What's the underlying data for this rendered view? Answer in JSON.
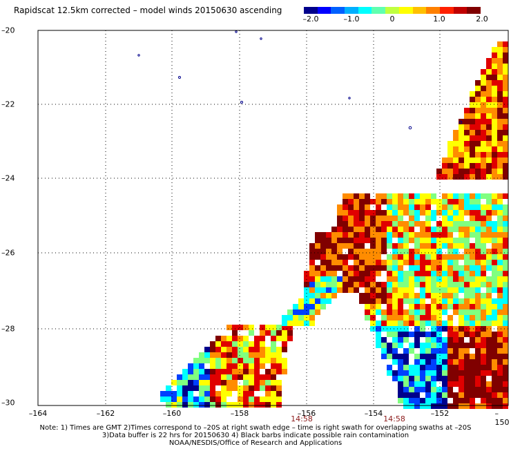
{
  "title": "Rapidscat 12.5km corrected – model winds 20150630 ascending",
  "colorbar": {
    "colors": [
      "#00008b",
      "#0000ff",
      "#0060ff",
      "#00b0ff",
      "#00ffff",
      "#60ffb0",
      "#c0ff40",
      "#ffff00",
      "#ffc000",
      "#ff8000",
      "#ff2000",
      "#c00000",
      "#800000"
    ],
    "ticks": [
      "–2.0",
      "–1.0",
      "0",
      "1.0",
      "2.0"
    ]
  },
  "axes": {
    "lat_labels": [
      "–20",
      "–22",
      "–24",
      "–26",
      "–28",
      "–30"
    ],
    "lon_labels": [
      "–164",
      "–162",
      "–160",
      "–158",
      "–156",
      "–154",
      "–152",
      "–150"
    ],
    "time_labels": [
      "14:58",
      "14:58"
    ]
  },
  "notes": [
    "Note: 1) Times are GMT 2)Times correspond to –20S at right swath edge – time is right swath for overlapping swaths at –20S",
    "3)Data buffer is 22 hrs for 20150630 4) Black barbs indicate possible rain contamination",
    "NOAA/NESDIS/Office of Research and Applications"
  ],
  "palette": {
    "dark_red": "#800000",
    "red": "#e00000",
    "orange": "#ff8c00",
    "yellow": "#ffff00",
    "green": "#80ff80",
    "cyan": "#00ffff",
    "blue": "#0040ff",
    "navy": "#00008b"
  }
}
